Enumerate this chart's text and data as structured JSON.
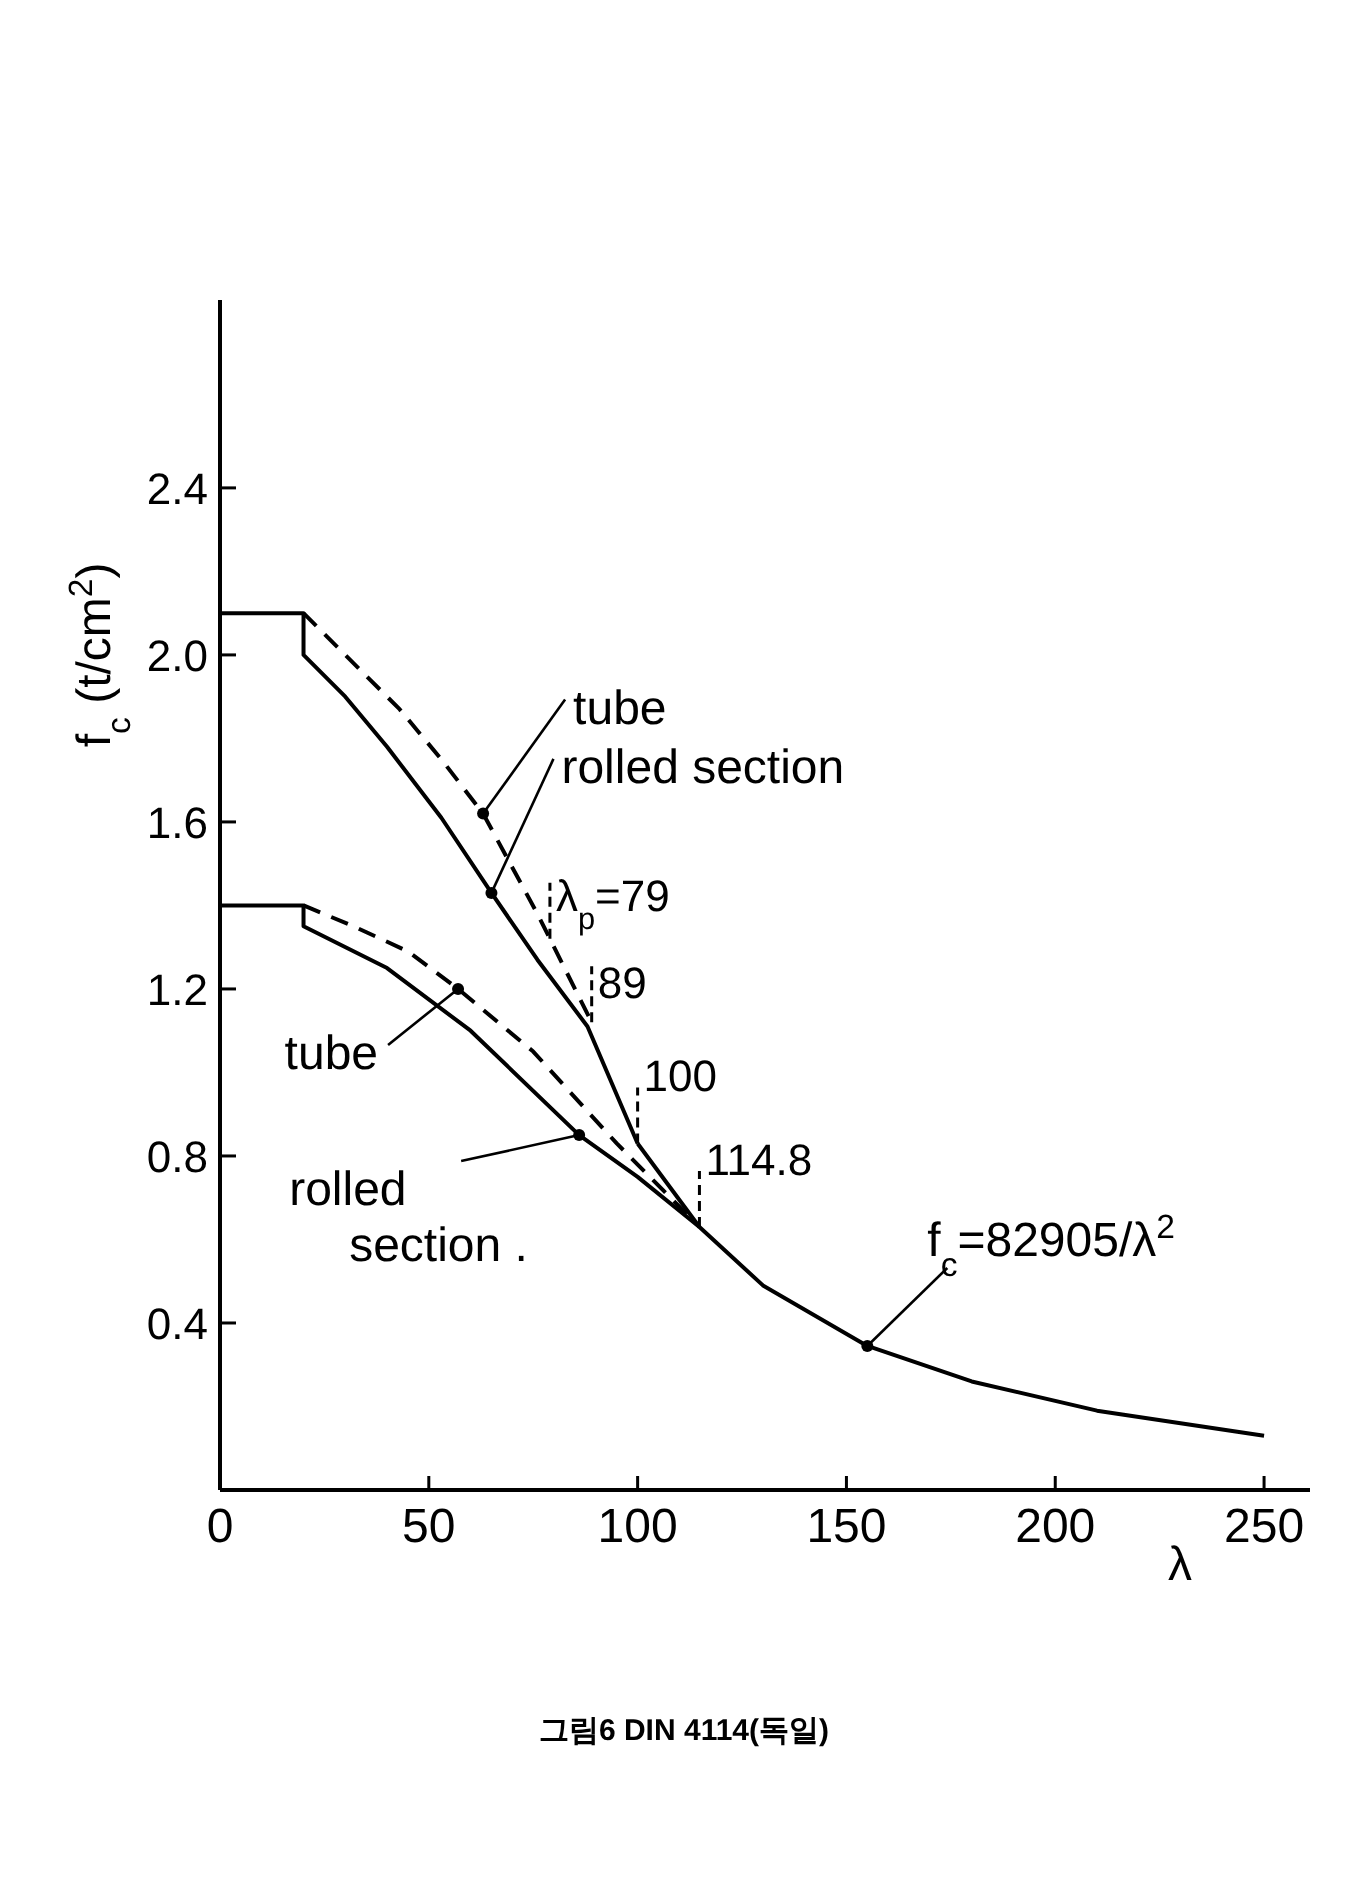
{
  "chart_data": {
    "type": "line",
    "xlabel": "λ",
    "ylabel": "f$_{c}$ (t/cm$^{2}$)",
    "xlim": [
      0,
      261
    ],
    "ylim": [
      0,
      2.85
    ],
    "xticks": [
      0,
      50,
      100,
      150,
      200,
      250
    ],
    "yticks": [
      0.4,
      0.8,
      1.2,
      1.6,
      {
        "value": 2.0,
        "label": "2.0"
      },
      2.4
    ],
    "marker": "none",
    "series": [
      {
        "color": "#000000",
        "line_style": "solid",
        "x": [
          0,
          20,
          20,
          30,
          40,
          53,
          65,
          76,
          88,
          100
        ],
        "values": [
          2.1,
          2.1,
          2.0,
          1.9,
          1.78,
          1.61,
          1.43,
          1.27,
          1.11,
          0.83
        ]
      },
      {
        "color": "#000000",
        "line_style": "dashed",
        "x": [
          20,
          30,
          43,
          53,
          63,
          76,
          89
        ],
        "values": [
          2.1,
          2.0,
          1.87,
          1.75,
          1.62,
          1.38,
          1.12
        ]
      },
      {
        "color": "#000000",
        "line_style": "solid",
        "x": [
          0,
          20,
          20,
          40,
          60,
          86,
          100,
          114.8
        ],
        "values": [
          1.4,
          1.4,
          1.35,
          1.25,
          1.1,
          0.85,
          0.75,
          0.63
        ]
      },
      {
        "color": "#000000",
        "line_style": "dashed",
        "x": [
          20,
          32,
          45,
          57,
          75,
          95,
          114.8
        ],
        "values": [
          1.4,
          1.35,
          1.29,
          1.2,
          1.05,
          0.83,
          0.63
        ]
      },
      {
        "color": "#000000",
        "line_style": "solid",
        "x": [
          100,
          114.8,
          130,
          155,
          180,
          210,
          250
        ],
        "values": [
          0.83,
          0.63,
          0.49,
          0.345,
          0.26,
          0.19,
          0.13
        ]
      }
    ],
    "annotations": [
      {
        "text": "tube",
        "x": 63,
        "y": 1.62
      },
      {
        "text": "rolled section",
        "x": 65,
        "y": 1.43
      },
      {
        "text": "λ$_{p}$=79",
        "x": 79,
        "y": 1.32
      },
      {
        "text": "89",
        "x": 89,
        "y": 1.12
      },
      {
        "text": "100",
        "x": 100,
        "y": 0.83
      },
      {
        "text": "114.8",
        "x": 114.8,
        "y": 0.63
      },
      {
        "text": "tube",
        "x": 57,
        "y": 1.2
      },
      {
        "text": "rolled section .",
        "x": 86,
        "y": 0.85
      },
      {
        "text": "f$_{c}$=82905/λ$^{2}$",
        "x": 155,
        "y": 0.345
      },
      "그림6 DIN 4114(독일)"
    ]
  }
}
